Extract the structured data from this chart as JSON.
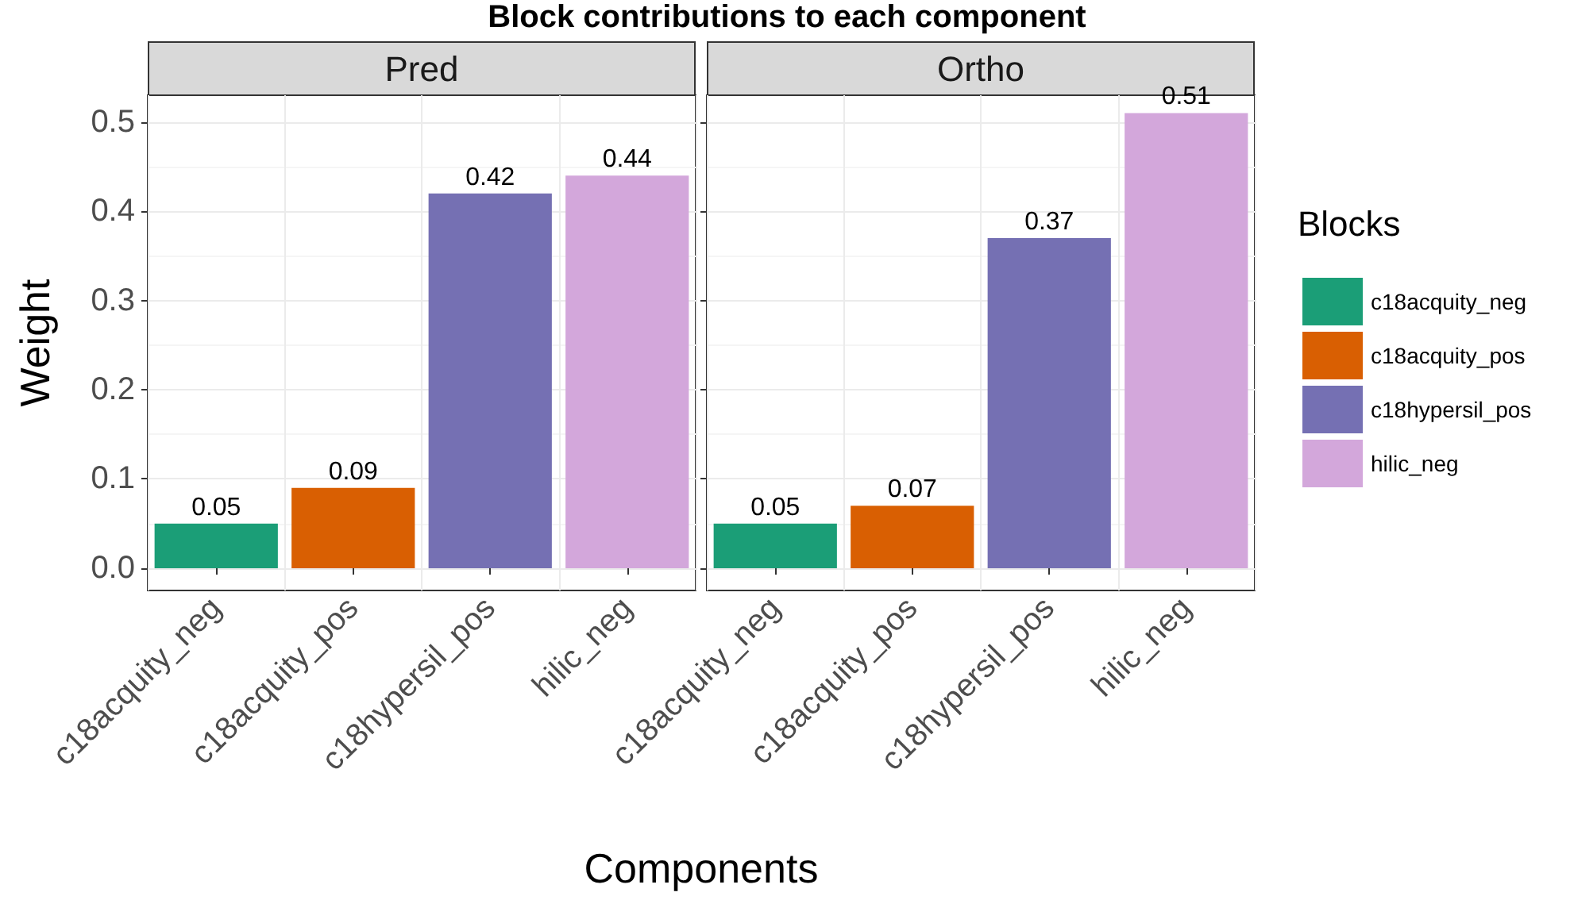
{
  "chart_data": [
    {
      "type": "bar",
      "title": "Pred",
      "annotations": [
        "Block contributions to each component"
      ],
      "xlabel": "Components",
      "ylabel": "Weight",
      "categories": [
        "c18acquity_neg",
        "c18acquity_pos",
        "c18hypersil_pos",
        "hilic_neg"
      ],
      "series": [
        {
          "color": "#1b9e77",
          "values": [
            0.05,
            null,
            null,
            null
          ]
        },
        {
          "color": "#d95f02",
          "values": [
            null,
            0.09,
            null,
            null
          ]
        },
        {
          "color": "#7570b3",
          "values": [
            null,
            null,
            0.42,
            null
          ]
        },
        {
          "color": "#d3a7db",
          "values": [
            null,
            null,
            null,
            0.44
          ]
        }
      ],
      "ylim": [
        -0.025,
        0.53
      ],
      "yticks": [
        {
          "value": 0,
          "label": "0.0"
        },
        0.1,
        0.2,
        0.3,
        0.4,
        0.5
      ],
      "grid": true,
      "data_labels": true
    },
    {
      "type": "bar",
      "title": "Ortho",
      "categories": [
        "c18acquity_neg",
        "c18acquity_pos",
        "c18hypersil_pos",
        "hilic_neg"
      ],
      "series": [
        {
          "name": "c18acquity_neg",
          "color": "#1b9e77",
          "values": [
            0.05,
            null,
            null,
            null
          ]
        },
        {
          "name": "c18acquity_pos",
          "color": "#d95f02",
          "values": [
            null,
            0.07,
            null,
            null
          ]
        },
        {
          "name": "c18hypersil_pos",
          "color": "#7570b3",
          "values": [
            null,
            null,
            0.37,
            null
          ]
        },
        {
          "name": "hilic_neg",
          "color": "#d3a7db",
          "values": [
            null,
            null,
            null,
            0.51
          ]
        }
      ],
      "ylim": [
        -0.025,
        0.53
      ],
      "yticks": [
        0,
        0.1,
        0.2,
        0.3,
        0.4,
        0.5
      ],
      "grid": true,
      "data_labels": true,
      "tick_labels": "x",
      "legend": "right",
      "legend_title": "Blocks"
    }
  ]
}
